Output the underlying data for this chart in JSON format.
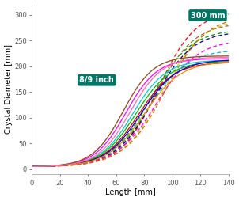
{
  "xlabel": "Length [mm]",
  "ylabel": "Crystal Diameter [mm]",
  "xlim": [
    0,
    140
  ],
  "ylim": [
    -10,
    320
  ],
  "yticks": [
    0,
    50,
    100,
    150,
    200,
    250,
    300
  ],
  "xticks": [
    0,
    20,
    40,
    60,
    80,
    100,
    120,
    140
  ],
  "solid_lines": [
    {
      "color": "#ff00ff",
      "plateau": 215,
      "infl": 67,
      "steep": 0.09
    },
    {
      "color": "#00cccc",
      "plateau": 212,
      "infl": 72,
      "steep": 0.085
    },
    {
      "color": "#00bb00",
      "plateau": 210,
      "infl": 74,
      "steep": 0.082
    },
    {
      "color": "#cc0000",
      "plateau": 208,
      "infl": 76,
      "steep": 0.08
    },
    {
      "color": "#0000dd",
      "plateau": 213,
      "infl": 78,
      "steep": 0.078
    },
    {
      "color": "#ff8800",
      "plateau": 210,
      "infl": 80,
      "steep": 0.076
    },
    {
      "color": "#8B4513",
      "plateau": 220,
      "infl": 65,
      "steep": 0.092
    },
    {
      "color": "#ff69b4",
      "plateau": 218,
      "infl": 70,
      "steep": 0.088
    }
  ],
  "dashed_lines": [
    {
      "color": "#ff0000",
      "plateau": 308,
      "infl": 90,
      "steep": 0.075
    },
    {
      "color": "#996633",
      "plateau": 285,
      "infl": 88,
      "steep": 0.072
    },
    {
      "color": "#cccc00",
      "plateau": 293,
      "infl": 93,
      "steep": 0.07
    },
    {
      "color": "#000099",
      "plateau": 268,
      "infl": 87,
      "steep": 0.073
    },
    {
      "color": "#009900",
      "plateau": 272,
      "infl": 85,
      "steep": 0.071
    },
    {
      "color": "#00bbbb",
      "plateau": 232,
      "infl": 83,
      "steep": 0.074
    },
    {
      "color": "#ff00ff",
      "plateau": 252,
      "infl": 89,
      "steep": 0.069
    },
    {
      "color": "#cc6600",
      "plateau": 300,
      "infl": 95,
      "steep": 0.068
    }
  ],
  "label_89": "8/9 inch",
  "label_300": "300 mm",
  "label_box_color": "#007766",
  "label_text_color": "#ffffff"
}
